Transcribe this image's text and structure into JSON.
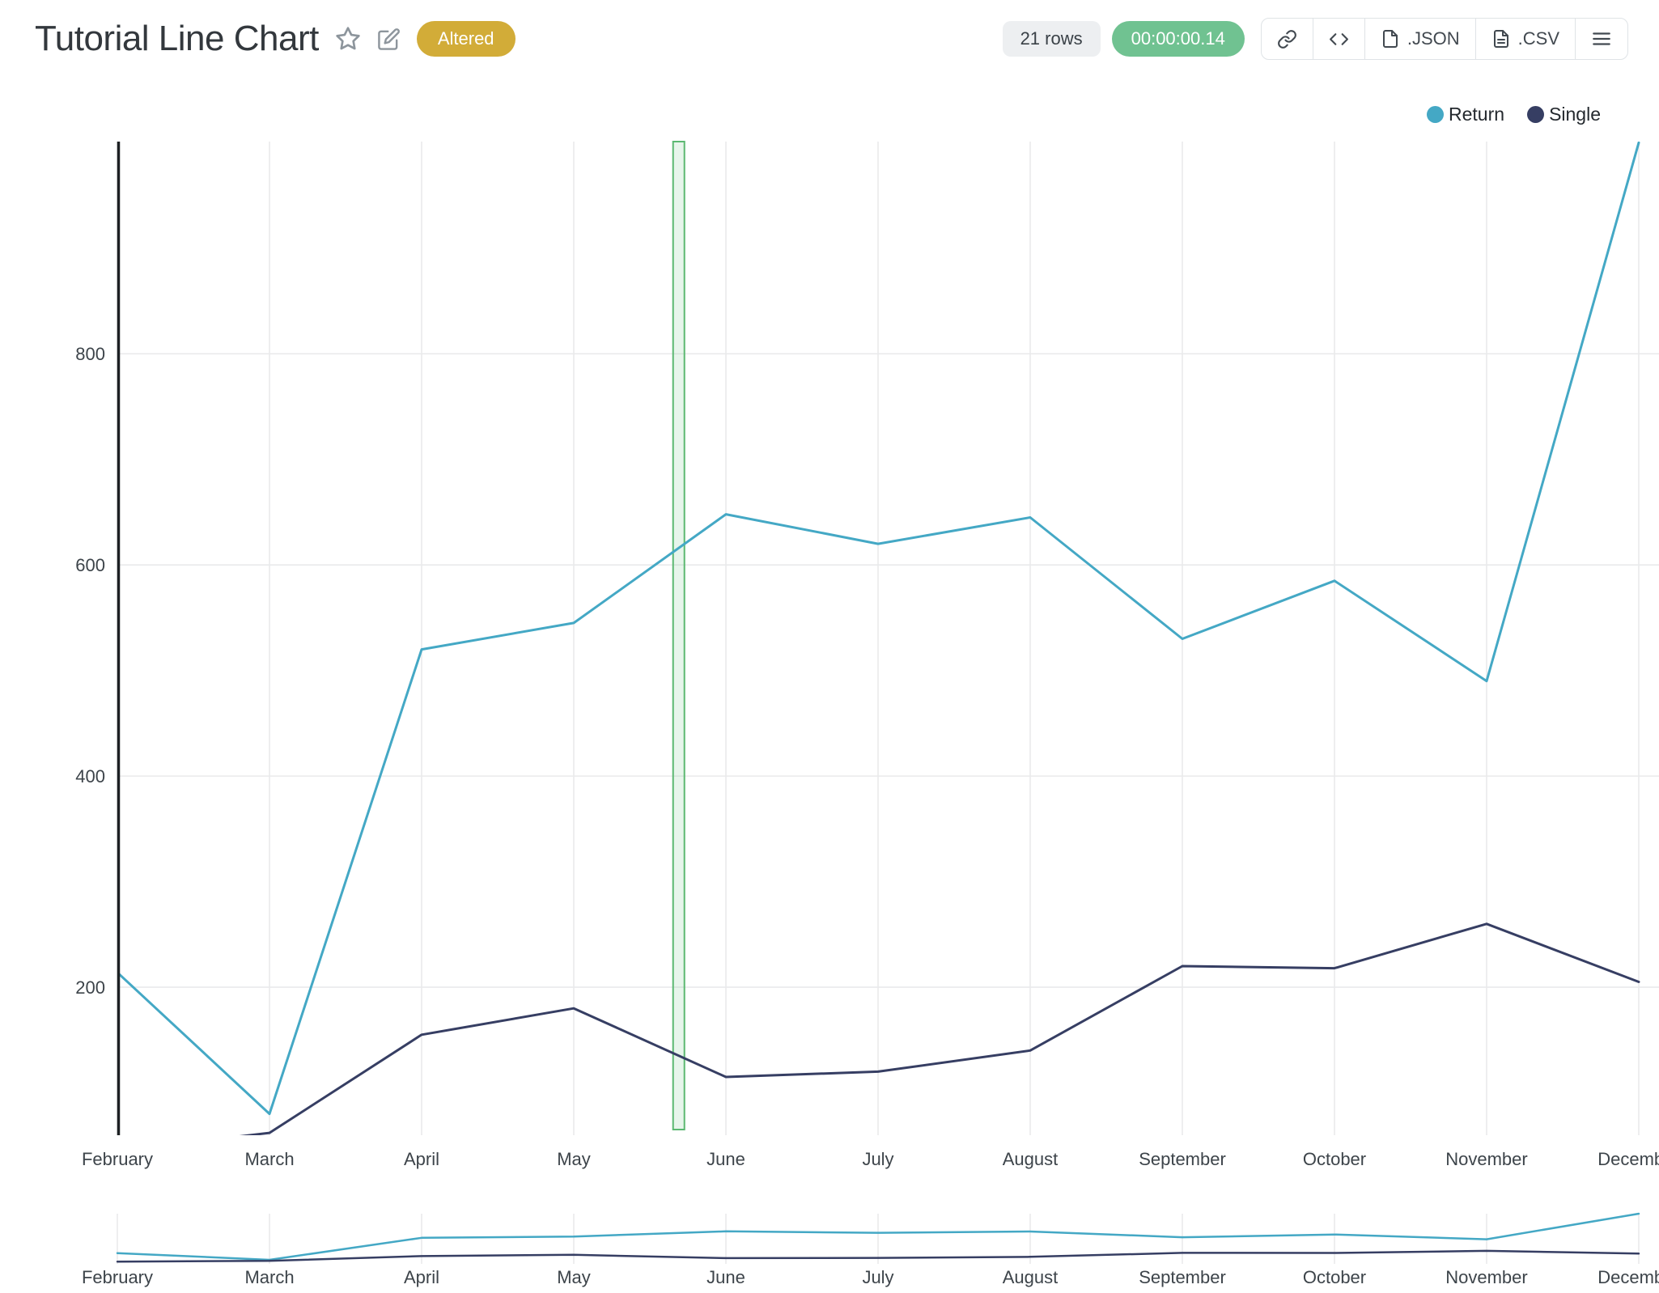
{
  "header": {
    "title": "Tutorial Line Chart",
    "status_badge": "Altered",
    "rows_label": "21 rows",
    "timer": "00:00:00.14",
    "buttons": {
      "json": ".JSON",
      "csv": ".CSV"
    }
  },
  "colors": {
    "series_return": "#44a8c5",
    "series_single": "#363e63",
    "badge_gold": "#d2ac38",
    "timer_green": "#70c291",
    "highlight_fill": "rgba(108,190,128,0.16)",
    "highlight_border": "#5bb871",
    "grid": "#e9eaeb",
    "axis": "#1d2023",
    "tick_text": "#3d444a"
  },
  "legend": [
    {
      "label": "Return",
      "color": "#44a8c5"
    },
    {
      "label": "Single",
      "color": "#363e63"
    }
  ],
  "chart_data": {
    "type": "line",
    "title": "Tutorial Line Chart",
    "categories": [
      "February",
      "March",
      "April",
      "May",
      "June",
      "July",
      "August",
      "September",
      "October",
      "November",
      "December"
    ],
    "series": [
      {
        "name": "Return",
        "color": "#44a8c5",
        "values": [
          214,
          80,
          520,
          545,
          648,
          620,
          645,
          530,
          585,
          490,
          1000
        ]
      },
      {
        "name": "Single",
        "color": "#363e63",
        "values": [
          45,
          62,
          155,
          180,
          115,
          120,
          140,
          220,
          218,
          260,
          205
        ]
      }
    ],
    "yticks": [
      200,
      400,
      600,
      800
    ],
    "visible_y_range": [
      59,
      1000
    ],
    "grid": true,
    "legend_position": "top-right",
    "highlight_band": {
      "between": [
        "May",
        "June"
      ],
      "position_month_index": 3.69
    },
    "overview_strip": {
      "enabled": true,
      "shows_same_series": true
    }
  }
}
